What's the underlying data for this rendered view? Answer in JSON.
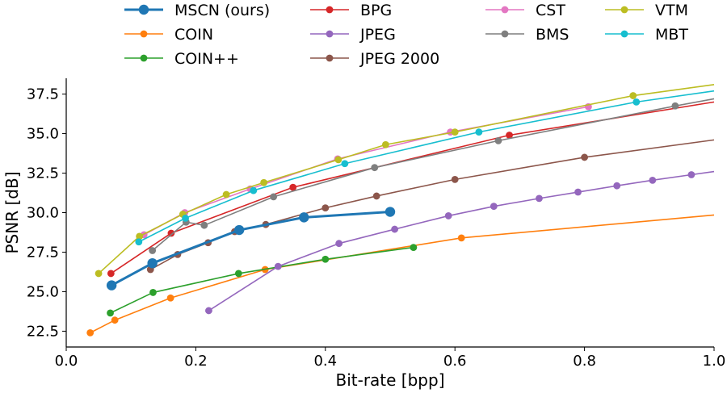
{
  "chart_data": {
    "type": "line",
    "xlabel": "Bit-rate [bpp]",
    "ylabel": "PSNR [dB]",
    "xlim": [
      0.0,
      1.0
    ],
    "ylim": [
      21.5,
      38.5
    ],
    "xticks": [
      "0.0",
      "0.2",
      "0.4",
      "0.6",
      "0.8",
      "1.0"
    ],
    "xtick_values": [
      0.0,
      0.2,
      0.4,
      0.6,
      0.8,
      1.0
    ],
    "yticks": [
      "22.5",
      "25.0",
      "27.5",
      "30.0",
      "32.5",
      "35.0",
      "37.5"
    ],
    "ytick_values": [
      22.5,
      25.0,
      27.5,
      30.0,
      32.5,
      35.0,
      37.5
    ],
    "grid": false,
    "legend_position": "top",
    "series": [
      {
        "name": "MSCN (ours)",
        "color": "#1f77b4",
        "emphasis": true,
        "x": [
          0.07,
          0.133,
          0.267,
          0.367,
          0.5
        ],
        "y": [
          25.4,
          26.8,
          28.9,
          29.7,
          30.05
        ]
      },
      {
        "name": "COIN",
        "color": "#ff7f0e",
        "emphasis": false,
        "x": [
          0.037,
          0.075,
          0.161,
          0.307,
          0.61,
          1.0
        ],
        "y": [
          22.4,
          23.2,
          24.6,
          26.4,
          28.4,
          29.85
        ]
      },
      {
        "name": "COIN++",
        "color": "#2ca02c",
        "emphasis": false,
        "x": [
          0.068,
          0.134,
          0.266,
          0.4,
          0.536
        ],
        "y": [
          23.65,
          24.95,
          26.15,
          27.05,
          27.8
        ]
      },
      {
        "name": "BPG",
        "color": "#d62728",
        "emphasis": false,
        "x": [
          0.069,
          0.162,
          0.35,
          0.684,
          1.0
        ],
        "y": [
          26.15,
          28.7,
          31.6,
          34.9,
          37.0
        ]
      },
      {
        "name": "JPEG",
        "color": "#9467bd",
        "emphasis": false,
        "x": [
          0.22,
          0.327,
          0.421,
          0.507,
          0.59,
          0.66,
          0.73,
          0.79,
          0.85,
          0.905,
          0.965,
          1.0
        ],
        "y": [
          23.8,
          26.6,
          28.05,
          28.95,
          29.8,
          30.4,
          30.9,
          31.3,
          31.7,
          32.05,
          32.4,
          32.6
        ]
      },
      {
        "name": "JPEG 2000",
        "color": "#8c564b",
        "emphasis": false,
        "x": [
          0.13,
          0.172,
          0.219,
          0.26,
          0.308,
          0.4,
          0.479,
          0.6,
          0.8,
          1.0
        ],
        "y": [
          26.4,
          27.35,
          28.1,
          28.8,
          29.25,
          30.3,
          31.05,
          32.1,
          33.5,
          34.6
        ]
      },
      {
        "name": "CST",
        "color": "#e377c2",
        "emphasis": false,
        "x": [
          0.12,
          0.183,
          0.284,
          0.419,
          0.593,
          0.806
        ],
        "y": [
          28.6,
          30.0,
          31.5,
          33.4,
          35.1,
          36.7
        ]
      },
      {
        "name": "BMS",
        "color": "#7f7f7f",
        "emphasis": false,
        "x": [
          0.133,
          0.185,
          0.213,
          0.32,
          0.476,
          0.667,
          0.94,
          1.0
        ],
        "y": [
          27.6,
          29.4,
          29.2,
          31.0,
          32.85,
          34.55,
          36.75,
          37.2
        ]
      },
      {
        "name": "VTM",
        "color": "#bcbd22",
        "emphasis": false,
        "x": [
          0.05,
          0.113,
          0.18,
          0.247,
          0.305,
          0.42,
          0.493,
          0.6,
          0.875,
          1.0
        ],
        "y": [
          26.15,
          28.5,
          29.9,
          31.15,
          31.9,
          33.35,
          34.3,
          35.1,
          37.4,
          38.1
        ]
      },
      {
        "name": "MBT",
        "color": "#17becf",
        "emphasis": false,
        "x": [
          0.112,
          0.184,
          0.289,
          0.43,
          0.637,
          0.88,
          1.0
        ],
        "y": [
          28.15,
          29.65,
          31.4,
          33.1,
          35.1,
          37.0,
          37.7
        ]
      }
    ],
    "legend_columns": [
      [
        "MSCN (ours)",
        "COIN",
        "COIN++"
      ],
      [
        "BPG",
        "JPEG",
        "JPEG 2000"
      ],
      [
        "CST",
        "BMS"
      ],
      [
        "VTM",
        "MBT"
      ]
    ]
  }
}
